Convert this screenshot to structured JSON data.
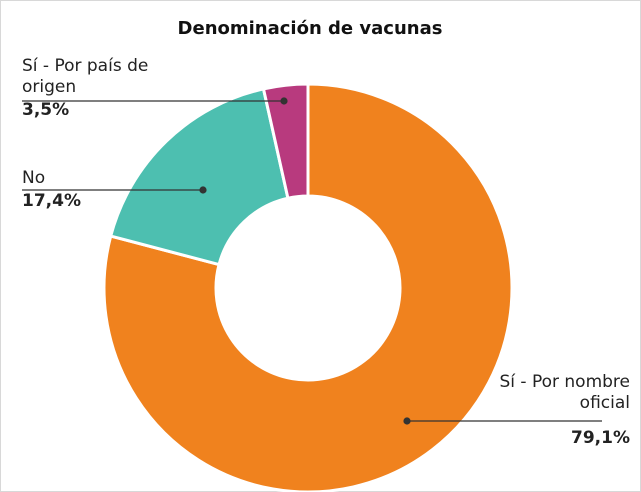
{
  "chart_data": {
    "type": "donut",
    "title": "Denominación de vacunas",
    "categories": [
      "Sí - Por nombre oficial",
      "No",
      "Sí - Por país de origen"
    ],
    "values": [
      79.1,
      17.4,
      3.5
    ],
    "value_labels": [
      "79,1%",
      "17,4%",
      "3,5%"
    ],
    "colors": [
      "#f0821e",
      "#4dbfb0",
      "#b83a7e"
    ]
  }
}
